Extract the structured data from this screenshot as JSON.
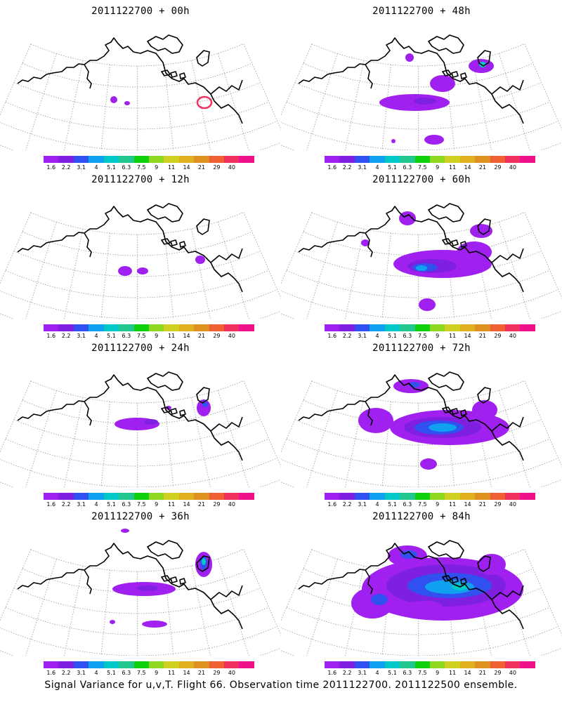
{
  "panels": [
    {
      "title": "2011122700 + 00h",
      "lead": "00h"
    },
    {
      "title": "2011122700 + 48h",
      "lead": "48h"
    },
    {
      "title": "2011122700 + 12h",
      "lead": "12h"
    },
    {
      "title": "2011122700 + 60h",
      "lead": "60h"
    },
    {
      "title": "2011122700 + 24h",
      "lead": "24h"
    },
    {
      "title": "2011122700 + 72h",
      "lead": "72h"
    },
    {
      "title": "2011122700 + 36h",
      "lead": "36h"
    },
    {
      "title": "2011122700 + 84h",
      "lead": "84h"
    }
  ],
  "colorbar": {
    "levels": [
      "1.6",
      "2.2",
      "3.1",
      "4",
      "5.1",
      "6.3",
      "7.5",
      "9",
      "11",
      "14",
      "21",
      "29",
      "40"
    ],
    "colors": [
      "#a020f0",
      "#7f20e0",
      "#3050f0",
      "#10a0f0",
      "#00c8c8",
      "#20c890",
      "#10d010",
      "#90d820",
      "#d0d020",
      "#e0b020",
      "#e09020",
      "#f06030",
      "#f03060",
      "#f0108a"
    ]
  },
  "caption": "Signal Variance for u,v,T. Flight 66. Observation time 2011122700. 2011122500 ensemble."
}
